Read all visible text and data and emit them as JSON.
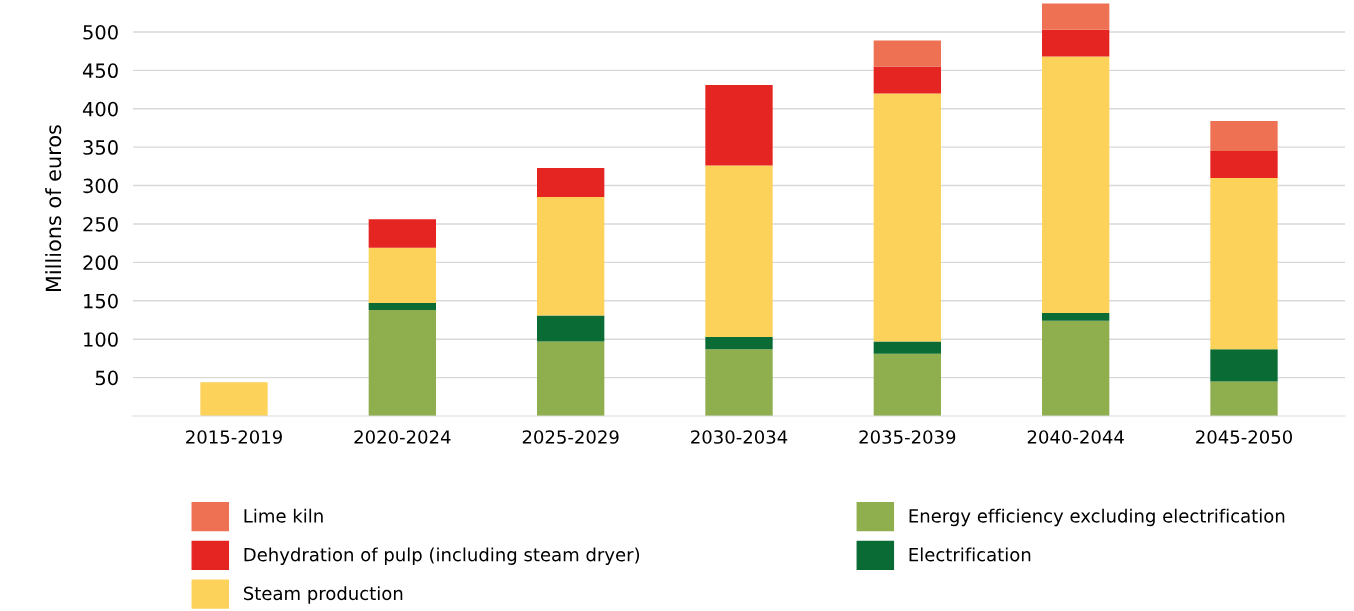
{
  "chart_data": {
    "type": "bar",
    "stacked": true,
    "ylabel": "Millions of euros",
    "categories": [
      "2015-2019",
      "2020-2024",
      "2025-2029",
      "2030-2034",
      "2035-2039",
      "2040-2044",
      "2045-2050"
    ],
    "series": [
      {
        "name": "Energy efficiency excluding electrification",
        "color": "#8fae4e",
        "values": [
          null,
          138,
          97,
          87,
          81,
          124,
          45
        ]
      },
      {
        "name": "Electrification",
        "color": "#0a6b35",
        "values": [
          null,
          9,
          34,
          16,
          16,
          10,
          42
        ]
      },
      {
        "name": "Steam production",
        "color": "#fdd25b",
        "values": [
          44,
          72,
          154,
          223,
          323,
          334,
          223
        ]
      },
      {
        "name": "Dehydration of pulp (including steam dryer)",
        "color": "#e52521",
        "values": [
          null,
          37,
          38,
          105,
          35,
          35,
          35
        ]
      },
      {
        "name": "Lime kiln",
        "color": "#ee7153",
        "values": [
          null,
          null,
          null,
          null,
          34,
          34,
          39
        ]
      }
    ],
    "ylim": [
      0,
      540
    ],
    "yticks": [
      50,
      100,
      150,
      200,
      250,
      300,
      350,
      400,
      450,
      500
    ],
    "grid": "y",
    "legend": "bottom"
  }
}
